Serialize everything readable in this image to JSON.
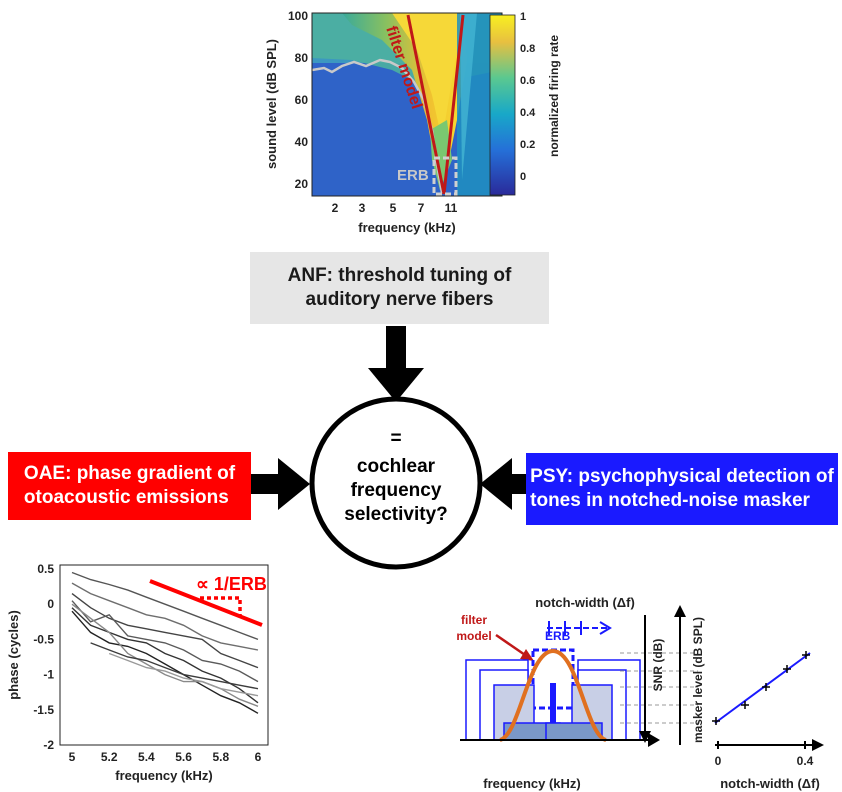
{
  "anf": {
    "box_text_line1": "ANF: threshold tuning of",
    "box_text_line2": "auditory nerve fibers",
    "plot": {
      "ylabel": "sound level (dB SPL)",
      "xlabel": "frequency (kHz)",
      "y_ticks": [
        "100",
        "80",
        "60",
        "40",
        "20"
      ],
      "x_ticks": [
        "2",
        "3",
        "5",
        "7",
        "11"
      ],
      "colorbar_label": "normalized firing rate",
      "colorbar_ticks": [
        "1",
        "0.8",
        "0.6",
        "0.4",
        "0.2",
        "0"
      ],
      "annotation_model": "filter model",
      "annotation_erb": "ERB"
    }
  },
  "center": {
    "eq": "=",
    "line1": "cochlear",
    "line2": "frequency",
    "line3": "selectivity?"
  },
  "oae": {
    "box_text_line1": "OAE: phase gradient of",
    "box_text_line2": "otoacoustic emissions",
    "annotation": "∝ 1/ERB"
  },
  "psy": {
    "box_text_line1": "PSY: psychophysical detection of",
    "box_text_line2": "tones in notched-noise masker",
    "notch_title": "notch-width (Δf)",
    "filter_model_line1": "filter",
    "filter_model_line2": "model",
    "erb_label": "ERB",
    "snr_label": "SNR (dB)",
    "masker_label": "masker level (dB SPL)",
    "xlabel_left": "frequency (kHz)",
    "xlabel_right": "notch-width (Δf)",
    "right_x_ticks": [
      "0",
      "0.4"
    ]
  },
  "chart_data": {
    "type": "line",
    "xlabel": "frequency (kHz)",
    "ylabel": "phase (cycles)",
    "xlim": [
      5,
      6
    ],
    "ylim": [
      -2,
      0.5
    ],
    "x_ticks": [
      "5",
      "5.2",
      "5.4",
      "5.6",
      "5.8",
      "6"
    ],
    "y_ticks": [
      "0.5",
      "0",
      "-0.5",
      "-1",
      "-1.5",
      "-2"
    ],
    "grid": false,
    "series": [
      {
        "x": [
          5.0,
          5.1,
          5.2,
          5.3,
          5.4,
          5.5,
          5.6,
          5.7,
          5.8,
          5.9,
          6.0
        ],
        "values": [
          0.45,
          0.35,
          0.28,
          0.2,
          0.1,
          0.0,
          -0.1,
          -0.2,
          -0.3,
          -0.4,
          -0.5
        ],
        "color": "#555555"
      },
      {
        "x": [
          5.0,
          5.1,
          5.2,
          5.3,
          5.4,
          5.5,
          5.6,
          5.7,
          5.8,
          5.9,
          6.0
        ],
        "values": [
          0.3,
          0.15,
          0.05,
          -0.05,
          -0.15,
          -0.2,
          -0.3,
          -0.45,
          -0.55,
          -0.6,
          -0.65
        ],
        "color": "#6e6e6e"
      },
      {
        "x": [
          5.0,
          5.1,
          5.2,
          5.3,
          5.4,
          5.5,
          5.6,
          5.7,
          5.8,
          5.9,
          6.0
        ],
        "values": [
          0.15,
          -0.05,
          -0.2,
          -0.3,
          -0.35,
          -0.4,
          -0.45,
          -0.5,
          -0.7,
          -0.8,
          -0.9
        ],
        "color": "#444444"
      },
      {
        "x": [
          5.0,
          5.1,
          5.2,
          5.3,
          5.4,
          5.5,
          5.6,
          5.7,
          5.8,
          5.9,
          6.0
        ],
        "values": [
          0.05,
          -0.25,
          -0.15,
          -0.45,
          -0.5,
          -0.55,
          -0.65,
          -0.8,
          -0.85,
          -0.95,
          -1.1
        ],
        "color": "#5a5a5a"
      },
      {
        "x": [
          5.0,
          5.1,
          5.2,
          5.3,
          5.4,
          5.5,
          5.6,
          5.7,
          5.8,
          5.9,
          6.0
        ],
        "values": [
          -0.05,
          -0.3,
          -0.4,
          -0.5,
          -0.55,
          -0.7,
          -0.8,
          -0.95,
          -1.05,
          -1.2,
          -1.4
        ],
        "color": "#333333"
      },
      {
        "x": [
          5.0,
          5.1,
          5.2,
          5.3,
          5.4,
          5.5,
          5.6,
          5.7,
          5.8,
          5.9,
          6.0
        ],
        "values": [
          -0.1,
          -0.4,
          -0.55,
          -0.6,
          -0.7,
          -0.85,
          -1.0,
          -1.15,
          -1.3,
          -1.4,
          -1.55
        ],
        "color": "#222222"
      },
      {
        "x": [
          5.0,
          5.1,
          5.2,
          5.3,
          5.4,
          5.5,
          5.6,
          5.7,
          5.8,
          5.9,
          6.0
        ],
        "values": [
          0.0,
          -0.2,
          -0.4,
          -0.7,
          -0.85,
          -1.0,
          -1.1,
          -1.1,
          -1.2,
          -1.35,
          -1.45
        ],
        "color": "#888888"
      },
      {
        "x": [
          5.2,
          5.3,
          5.4,
          5.5,
          5.6,
          5.7,
          5.8,
          5.9,
          6.0
        ],
        "values": [
          -0.7,
          -0.8,
          -0.9,
          -0.95,
          -1.05,
          -1.1,
          -1.2,
          -1.25,
          -1.3
        ],
        "color": "#999999"
      },
      {
        "x": [
          5.1,
          5.2,
          5.3,
          5.4,
          5.5,
          5.6,
          5.7,
          5.8,
          5.9,
          6.0
        ],
        "values": [
          -0.55,
          -0.65,
          -0.75,
          -0.8,
          -0.9,
          -1.0,
          -1.05,
          -1.1,
          -1.15,
          -1.2
        ],
        "color": "#3c3c3c"
      }
    ]
  },
  "colors": {
    "oae": "#ff0000",
    "psy": "#1a1aff",
    "anf_box": "#e6e6e6",
    "filter_model": "#c01818",
    "filter_orange": "#e07020"
  }
}
